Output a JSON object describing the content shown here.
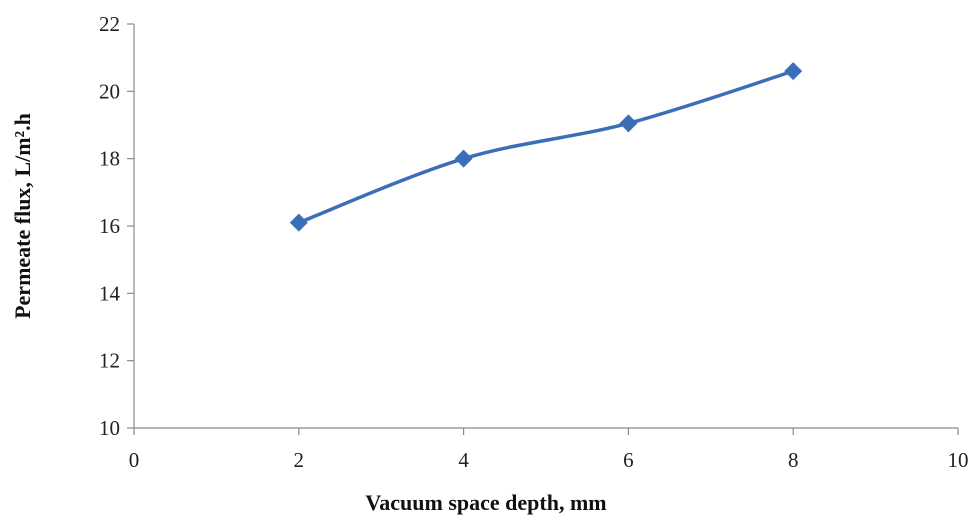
{
  "chart_data": {
    "type": "line",
    "title": "",
    "xlabel": "Vacuum space depth, mm",
    "ylabel": "Permeate flux, L/m².h",
    "xlim": [
      0,
      10
    ],
    "ylim": [
      10,
      22
    ],
    "xticks": [
      0,
      2,
      4,
      6,
      8,
      10
    ],
    "yticks": [
      10,
      12,
      14,
      16,
      18,
      20,
      22
    ],
    "grid": false,
    "legend": "none",
    "marker": "diamond",
    "line_color": "#3A6FB7",
    "marker_color": "#3A6FB7",
    "series": [
      {
        "x": [
          2,
          4,
          6,
          8
        ],
        "values": [
          16.1,
          18.0,
          19.05,
          20.6
        ]
      }
    ]
  }
}
